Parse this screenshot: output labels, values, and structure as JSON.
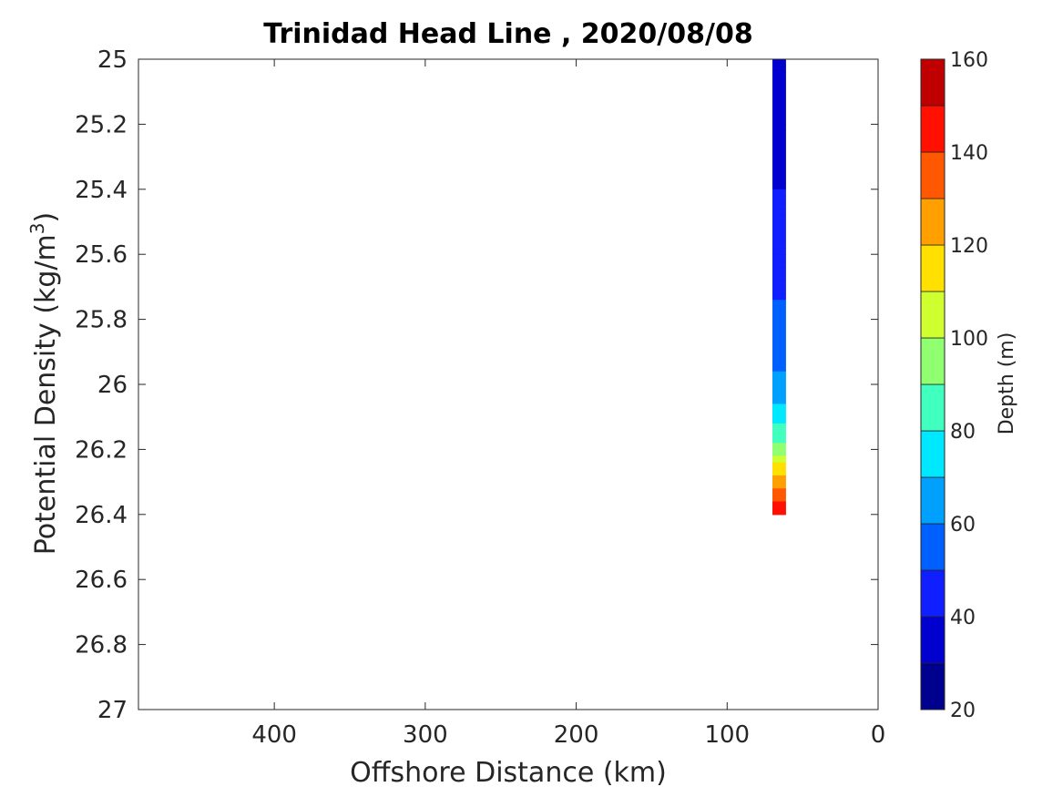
{
  "chart_data": {
    "type": "heatmap",
    "title": "Trinidad Head Line , 2020/08/08",
    "xlabel": "Offshore Distance (km)",
    "ylabel_main": "Potential Density (kg/m",
    "ylabel_sup": "3",
    "ylabel_close": ")",
    "xlim": [
      490,
      0
    ],
    "x_reversed": true,
    "ylim": [
      25,
      27
    ],
    "y_reversed": true,
    "x_ticks": [
      400,
      300,
      200,
      100,
      0
    ],
    "y_ticks": [
      25,
      25.2,
      25.4,
      25.6,
      25.8,
      26,
      26.2,
      26.4,
      26.6,
      26.8,
      27
    ],
    "column_x_range": [
      70,
      61
    ],
    "column_y_range": [
      25,
      26.4
    ],
    "depth_profile": [
      {
        "density": 25.0,
        "depth": 35
      },
      {
        "density": 25.2,
        "depth": 38
      },
      {
        "density": 25.4,
        "depth": 40
      },
      {
        "density": 25.6,
        "depth": 46
      },
      {
        "density": 25.8,
        "depth": 52
      },
      {
        "density": 26.0,
        "depth": 62
      },
      {
        "density": 26.1,
        "depth": 75
      },
      {
        "density": 26.2,
        "depth": 95
      },
      {
        "density": 26.3,
        "depth": 125
      },
      {
        "density": 26.4,
        "depth": 150
      }
    ],
    "colorbar": {
      "label": "Depth (m)",
      "min": 20,
      "max": 160,
      "step": 10,
      "tick_values": [
        20,
        40,
        60,
        80,
        100,
        120,
        140,
        160
      ],
      "colors": [
        "#00008f",
        "#0000cf",
        "#0f1fff",
        "#0060ff",
        "#00a0ff",
        "#00e8ff",
        "#40ffbf",
        "#90ff70",
        "#d0ff30",
        "#ffe000",
        "#ffa000",
        "#ff5800",
        "#ff1000",
        "#c00000"
      ]
    },
    "grid": false,
    "legend": "colorbar-right"
  }
}
